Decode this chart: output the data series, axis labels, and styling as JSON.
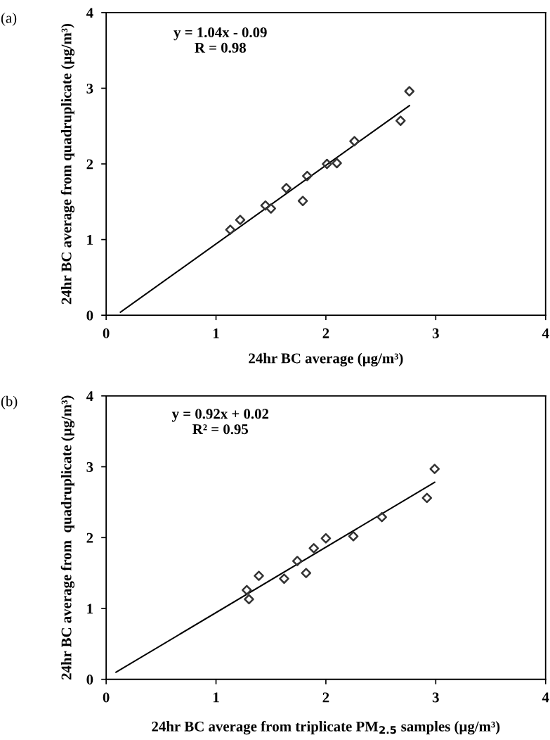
{
  "chart_data": [
    {
      "type": "scatter",
      "title": "(a)",
      "xlabel": "24hr BC average (µg/m³)",
      "ylabel": "24hr BC average from quadruplicate (µg/m³)",
      "annotations": [
        "y = 1.04x - 0.09\nR = 0.98"
      ],
      "xlim": [
        0,
        4
      ],
      "ylim": [
        0,
        4
      ],
      "xticks": [
        0,
        1,
        2,
        3,
        4
      ],
      "yticks": [
        0,
        1,
        2,
        3,
        4
      ],
      "grid": false,
      "legend": false,
      "series": [
        {
          "marker": "diamond",
          "color": "#333333",
          "x": [
            1.13,
            1.22,
            1.45,
            1.5,
            1.64,
            1.79,
            1.83,
            2.01,
            2.1,
            2.26,
            2.68,
            2.76
          ],
          "values": [
            1.13,
            1.26,
            1.45,
            1.41,
            1.68,
            1.51,
            1.84,
            2.0,
            2.01,
            2.3,
            2.57,
            2.96
          ]
        },
        {
          "type": "line",
          "marker": "none",
          "color": "#000000",
          "x": [
            0.13,
            2.76
          ],
          "values": [
            0.04,
            2.77
          ]
        }
      ]
    },
    {
      "type": "scatter",
      "title": "(b)",
      "xlabel": "24hr BC average from triplicate PM$_{2.5}$ samples (µg/m³)",
      "ylabel": "24hr BC average from  quadruplicate (µg/m³)",
      "annotations": [
        "y = 0.92x + 0.02\nR² = 0.95"
      ],
      "xlim": [
        0,
        4
      ],
      "ylim": [
        0,
        4
      ],
      "xticks": [
        0,
        1,
        2,
        3,
        4
      ],
      "yticks": [
        0,
        1,
        2,
        3,
        4
      ],
      "grid": false,
      "legend": false,
      "series": [
        {
          "marker": "diamond",
          "color": "#333333",
          "x": [
            1.28,
            1.3,
            1.39,
            1.62,
            1.74,
            1.82,
            1.89,
            2.0,
            2.25,
            2.51,
            2.92,
            2.99
          ],
          "values": [
            1.26,
            1.13,
            1.46,
            1.42,
            1.67,
            1.5,
            1.85,
            1.99,
            2.02,
            2.29,
            2.56,
            2.97
          ]
        },
        {
          "type": "line",
          "marker": "none",
          "color": "#000000",
          "x": [
            0.09,
            2.99
          ],
          "values": [
            0.1,
            2.78
          ]
        }
      ]
    }
  ]
}
